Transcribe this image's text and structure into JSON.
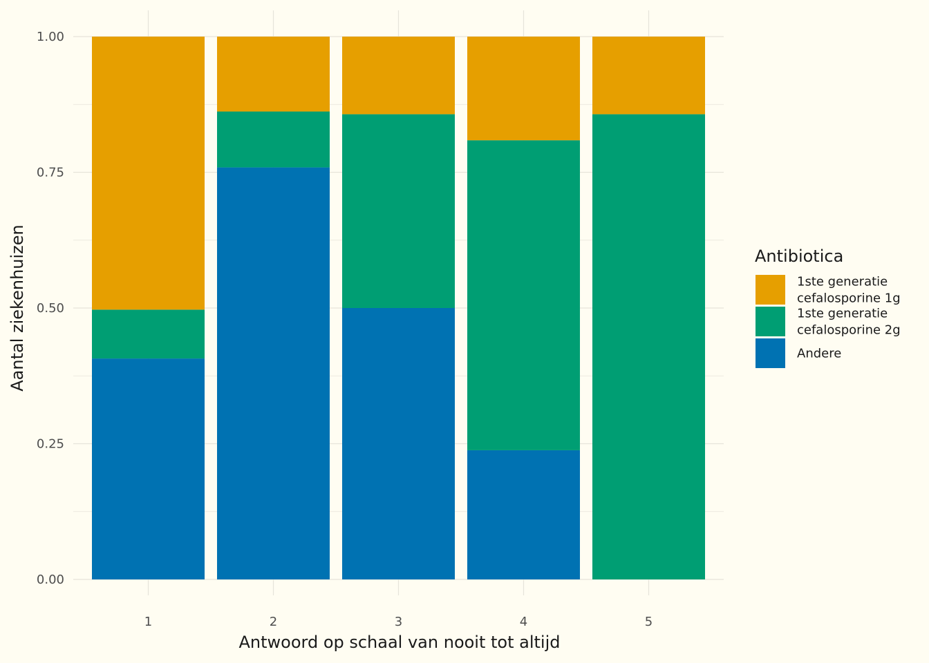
{
  "chart_data": {
    "type": "bar",
    "stacked": true,
    "normalized": true,
    "categories": [
      "1",
      "2",
      "3",
      "4",
      "5"
    ],
    "series": [
      {
        "name": "Andere",
        "color": "#0072b2",
        "values": [
          0.407,
          0.759,
          0.5,
          0.238,
          0.0
        ]
      },
      {
        "name": "1ste generatie cefalosporine 2g",
        "color": "#009e73",
        "values": [
          0.09,
          0.103,
          0.357,
          0.571,
          0.857
        ]
      },
      {
        "name": "1ste generatie cefalosporine 1g",
        "color": "#e69f00",
        "values": [
          0.503,
          0.138,
          0.143,
          0.191,
          0.143
        ]
      }
    ],
    "xlabel": "Antwoord op schaal van nooit tot altijd",
    "ylabel": "Aantal ziekenhuizen",
    "ylim": [
      0,
      1
    ],
    "yticks": [
      "0.00",
      "0.25",
      "0.50",
      "0.75",
      "1.00"
    ],
    "grid": true,
    "legend": {
      "title": "Antibiotica",
      "placement": "right",
      "items": [
        {
          "lines": [
            "1ste generatie",
            "cefalosporine 1g"
          ],
          "color": "#e69f00"
        },
        {
          "lines": [
            "1ste generatie",
            "cefalosporine 2g"
          ],
          "color": "#009e73"
        },
        {
          "lines": [
            "Andere"
          ],
          "color": "#0072b2"
        }
      ]
    }
  }
}
